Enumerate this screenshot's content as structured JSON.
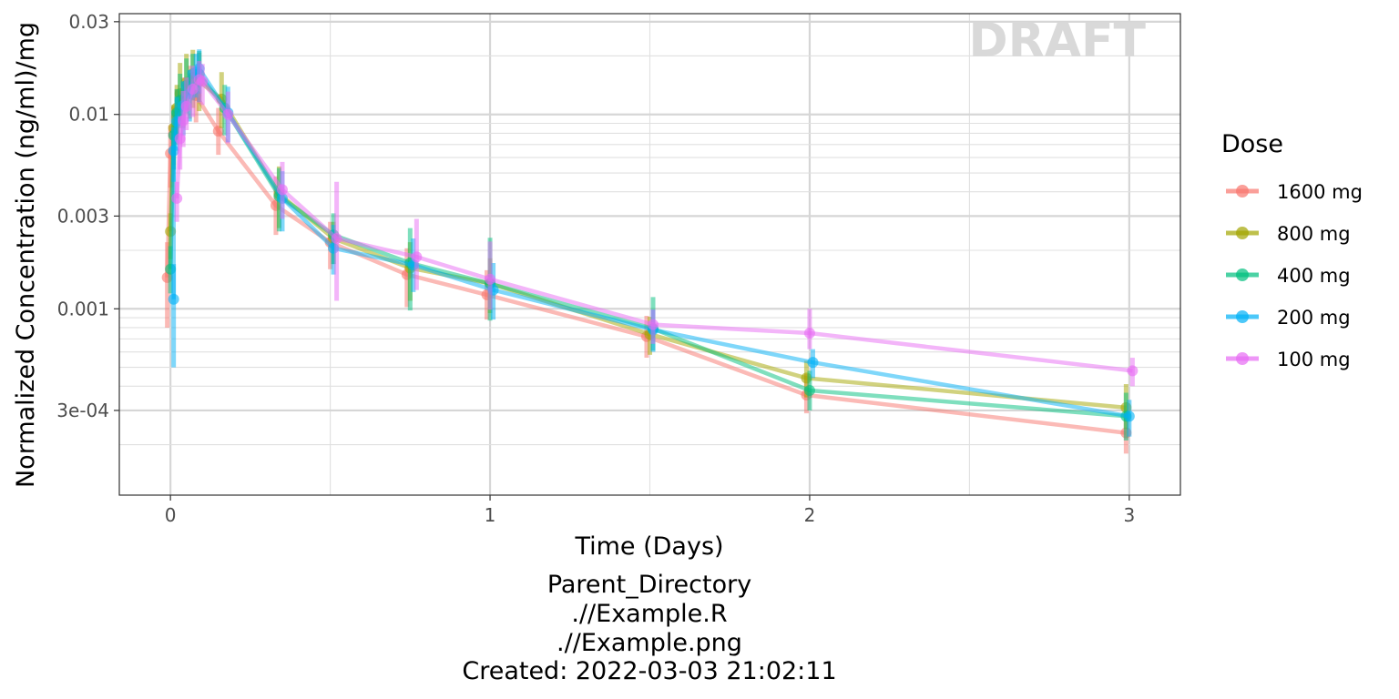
{
  "chart_data": {
    "type": "line",
    "watermark": "DRAFT",
    "xlabel": "Time (Days)",
    "ylabel": "Normalized Concentration (ng/ml)/mg",
    "xlim": [
      -0.16,
      3.16
    ],
    "ylim": [
      0.00011,
      0.033
    ],
    "y_scale": "log",
    "grid": true,
    "x_ticks": [
      0,
      1,
      2,
      3
    ],
    "x_tick_labels": [
      "0",
      "1",
      "2",
      "3"
    ],
    "y_ticks": [
      0.0003,
      0.001,
      0.003,
      0.01,
      0.03
    ],
    "y_tick_labels": [
      "3e-04",
      "0.001",
      "0.003",
      "0.01",
      "0.03"
    ],
    "legend": {
      "title": "Dose",
      "position": "right"
    },
    "caption": [
      "Parent_Directory",
      ".//Example.R",
      ".//Example.png",
      "Created: 2022-03-03 21:02:11"
    ],
    "series": [
      {
        "name": "1600 mg",
        "color": "#F8766D",
        "x": [
          -0.01,
          0.0,
          0.01,
          0.02,
          0.04,
          0.06,
          0.08,
          0.15,
          0.33,
          0.5,
          0.74,
          0.99,
          1.49,
          1.99,
          2.99
        ],
        "y": [
          0.00145,
          0.0063,
          0.0079,
          0.0098,
          0.0115,
          0.0135,
          0.0125,
          0.0082,
          0.0034,
          0.0022,
          0.0015,
          0.00118,
          0.00072,
          0.00036,
          0.00023
        ],
        "err_low": [
          0.0008,
          0.0042,
          0.0052,
          0.007,
          0.0085,
          0.0095,
          0.0091,
          0.0062,
          0.0024,
          0.0016,
          0.00102,
          0.00088,
          0.00056,
          0.00029,
          0.00018
        ],
        "err_high": [
          0.0022,
          0.0088,
          0.011,
          0.0134,
          0.0155,
          0.0178,
          0.0164,
          0.0108,
          0.0048,
          0.0028,
          0.00205,
          0.00158,
          0.00092,
          0.00046,
          0.00029
        ]
      },
      {
        "name": "800 mg",
        "color": "#A3A500",
        "x": [
          0.0,
          0.01,
          0.02,
          0.03,
          0.05,
          0.07,
          0.09,
          0.16,
          0.34,
          0.51,
          0.75,
          1.0,
          1.5,
          1.99,
          2.99
        ],
        "y": [
          0.0025,
          0.0085,
          0.0108,
          0.0128,
          0.0146,
          0.0155,
          0.0148,
          0.012,
          0.0039,
          0.0023,
          0.00162,
          0.00135,
          0.00074,
          0.00044,
          0.00031
        ],
        "err_low": [
          0.0018,
          0.0055,
          0.0076,
          0.0093,
          0.0105,
          0.0108,
          0.0104,
          0.0085,
          0.0026,
          0.0017,
          0.0011,
          0.00095,
          0.00058,
          0.00035,
          0.00024
        ],
        "err_high": [
          0.0031,
          0.0112,
          0.0142,
          0.0184,
          0.0205,
          0.0215,
          0.0208,
          0.0165,
          0.0054,
          0.0028,
          0.0022,
          0.00182,
          0.00091,
          0.00054,
          0.00041
        ]
      },
      {
        "name": "400 mg",
        "color": "#00BF7D",
        "x": [
          0.0,
          0.01,
          0.02,
          0.03,
          0.05,
          0.07,
          0.09,
          0.17,
          0.34,
          0.51,
          0.75,
          1.0,
          1.51,
          2.0,
          2.99
        ],
        "y": [
          0.0016,
          0.0078,
          0.0102,
          0.0118,
          0.0141,
          0.0162,
          0.0161,
          0.0108,
          0.0038,
          0.0024,
          0.00172,
          0.00135,
          0.00079,
          0.00038,
          0.00028
        ],
        "err_low": [
          0.0012,
          0.0052,
          0.0074,
          0.0085,
          0.0101,
          0.0118,
          0.0116,
          0.0078,
          0.0025,
          0.0017,
          0.00098,
          0.00087,
          0.00061,
          0.0003,
          0.00021
        ],
        "err_high": [
          0.0021,
          0.0105,
          0.0135,
          0.0162,
          0.0194,
          0.0205,
          0.0212,
          0.0142,
          0.0053,
          0.0031,
          0.0026,
          0.00232,
          0.00115,
          0.00048,
          0.00037
        ]
      },
      {
        "name": "200 mg",
        "color": "#00B0F6",
        "x": [
          0.01,
          0.01,
          0.02,
          0.04,
          0.06,
          0.08,
          0.09,
          0.18,
          0.35,
          0.51,
          0.76,
          1.01,
          1.51,
          2.01,
          3.0
        ],
        "y": [
          0.00112,
          0.0065,
          0.0092,
          0.0111,
          0.0128,
          0.0165,
          0.0172,
          0.0102,
          0.0037,
          0.00205,
          0.00168,
          0.00125,
          0.00078,
          0.00053,
          0.00028
        ],
        "err_low": [
          0.0005,
          0.0045,
          0.0065,
          0.0078,
          0.0092,
          0.0122,
          0.0128,
          0.0072,
          0.0025,
          0.0015,
          0.00122,
          0.00088,
          0.0006,
          0.00044,
          0.00022
        ],
        "err_high": [
          0.0017,
          0.0086,
          0.0123,
          0.0148,
          0.0169,
          0.0205,
          0.0216,
          0.0139,
          0.0051,
          0.0027,
          0.0023,
          0.00172,
          0.00099,
          0.00062,
          0.00034
        ]
      },
      {
        "name": "100 mg",
        "color": "#E76BF3",
        "x": [
          0.02,
          0.03,
          0.04,
          0.05,
          0.07,
          0.09,
          0.1,
          0.18,
          0.35,
          0.52,
          0.77,
          1.0,
          1.51,
          2.0,
          3.01
        ],
        "y": [
          0.0037,
          0.0075,
          0.0093,
          0.011,
          0.0135,
          0.0151,
          0.0148,
          0.01,
          0.0041,
          0.0023,
          0.00185,
          0.00142,
          0.00083,
          0.00075,
          0.00048
        ],
        "err_low": [
          0.0028,
          0.0052,
          0.0068,
          0.0083,
          0.0097,
          0.0115,
          0.0112,
          0.0071,
          0.0029,
          0.0011,
          0.00125,
          0.00099,
          0.00066,
          0.00062,
          0.0004
        ],
        "err_high": [
          0.0045,
          0.0098,
          0.0132,
          0.0155,
          0.0178,
          0.0188,
          0.0182,
          0.0131,
          0.0057,
          0.0045,
          0.0029,
          0.00222,
          0.00099,
          0.001,
          0.00056
        ]
      }
    ]
  }
}
